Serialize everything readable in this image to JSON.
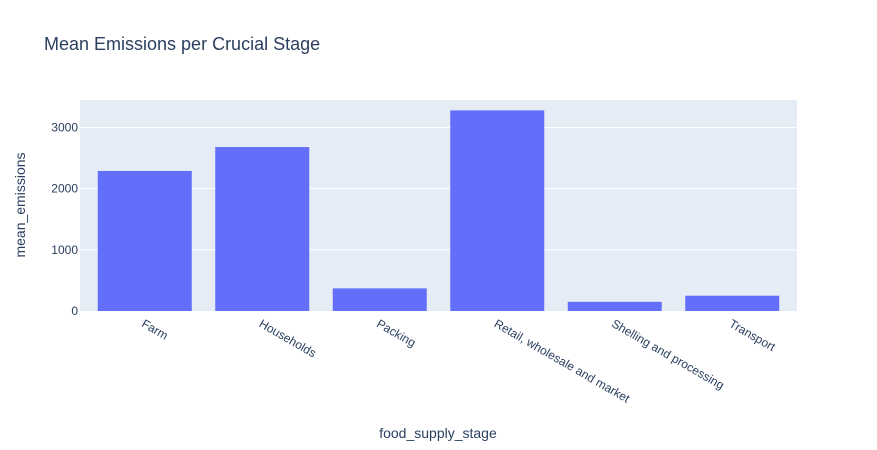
{
  "chart_data": {
    "type": "bar",
    "title": "Mean Emissions per Crucial Stage",
    "xlabel": "food_supply_stage",
    "ylabel": "mean_emissions",
    "categories": [
      "Farm",
      "Households",
      "Packing",
      "Retail, wholesale and market",
      "Shelling and processing",
      "Transport"
    ],
    "values": [
      2290,
      2680,
      370,
      3280,
      150,
      250
    ],
    "ylim": [
      0,
      3450
    ],
    "yticks": [
      0,
      1000,
      2000,
      3000
    ],
    "ytick_labels": [
      "0",
      "1000",
      "2000",
      "3000"
    ],
    "grid": true,
    "colors": {
      "bar": "#636efa",
      "plot_bg": "#e5ecf6",
      "grid": "#ffffff",
      "text": "#2a3f5f"
    }
  }
}
